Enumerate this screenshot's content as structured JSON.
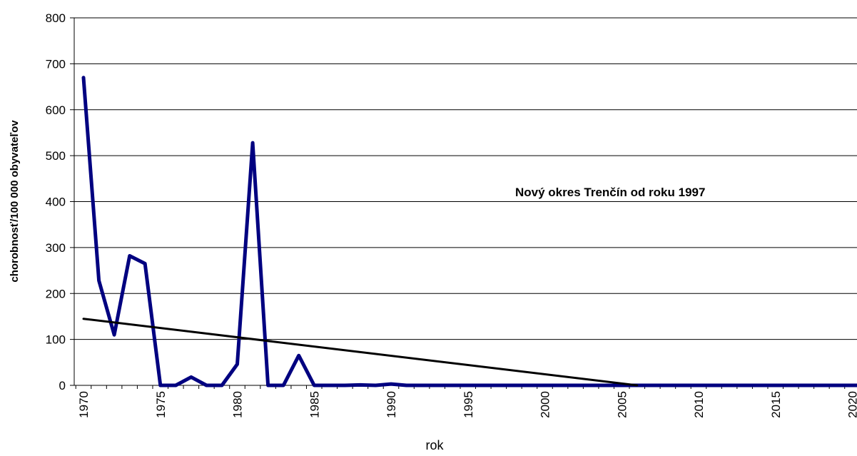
{
  "chart_data": {
    "type": "line",
    "title": "",
    "xlabel": "rok",
    "ylabel": "chorobnosť/100 000 obyvateľov",
    "annotation": "Nový okres Trenčín od roku 1997",
    "xlim": [
      1970,
      2021
    ],
    "ylim": [
      0,
      800
    ],
    "yticks": [
      0,
      100,
      200,
      300,
      400,
      500,
      600,
      700,
      800
    ],
    "xticks": [
      1970,
      1975,
      1980,
      1985,
      1990,
      1995,
      2000,
      2005,
      2010,
      2015,
      2020
    ],
    "grid": "horizontal",
    "legend": "none",
    "series": [
      {
        "color": "#000080",
        "x": [
          1970,
          1971,
          1972,
          1973,
          1974,
          1975,
          1976,
          1977,
          1978,
          1979,
          1980,
          1981,
          1982,
          1983,
          1984,
          1985,
          1986,
          1987,
          1988,
          1989,
          1990,
          1991,
          1992,
          1993,
          1994,
          1995,
          1996,
          1997,
          1998,
          1999,
          2000,
          2001,
          2002,
          2003,
          2004,
          2005,
          2006,
          2007,
          2008,
          2009,
          2010,
          2011,
          2012,
          2013,
          2014,
          2015,
          2016,
          2017,
          2018,
          2019,
          2020,
          2021
        ],
        "values": [
          670,
          228,
          110,
          282,
          265,
          0,
          0,
          18,
          0,
          0,
          46,
          528,
          0,
          0,
          65,
          0,
          0,
          0,
          1,
          0,
          3,
          0,
          0,
          0,
          0,
          0,
          0,
          0,
          0,
          0,
          0,
          0,
          0,
          0,
          0,
          0,
          0,
          0,
          0,
          0,
          0,
          0,
          0,
          0,
          0,
          0,
          0,
          0,
          0,
          0,
          0,
          0
        ]
      },
      {
        "color": "#000000",
        "x": [
          1970,
          2006
        ],
        "values": [
          145,
          0
        ]
      }
    ]
  }
}
